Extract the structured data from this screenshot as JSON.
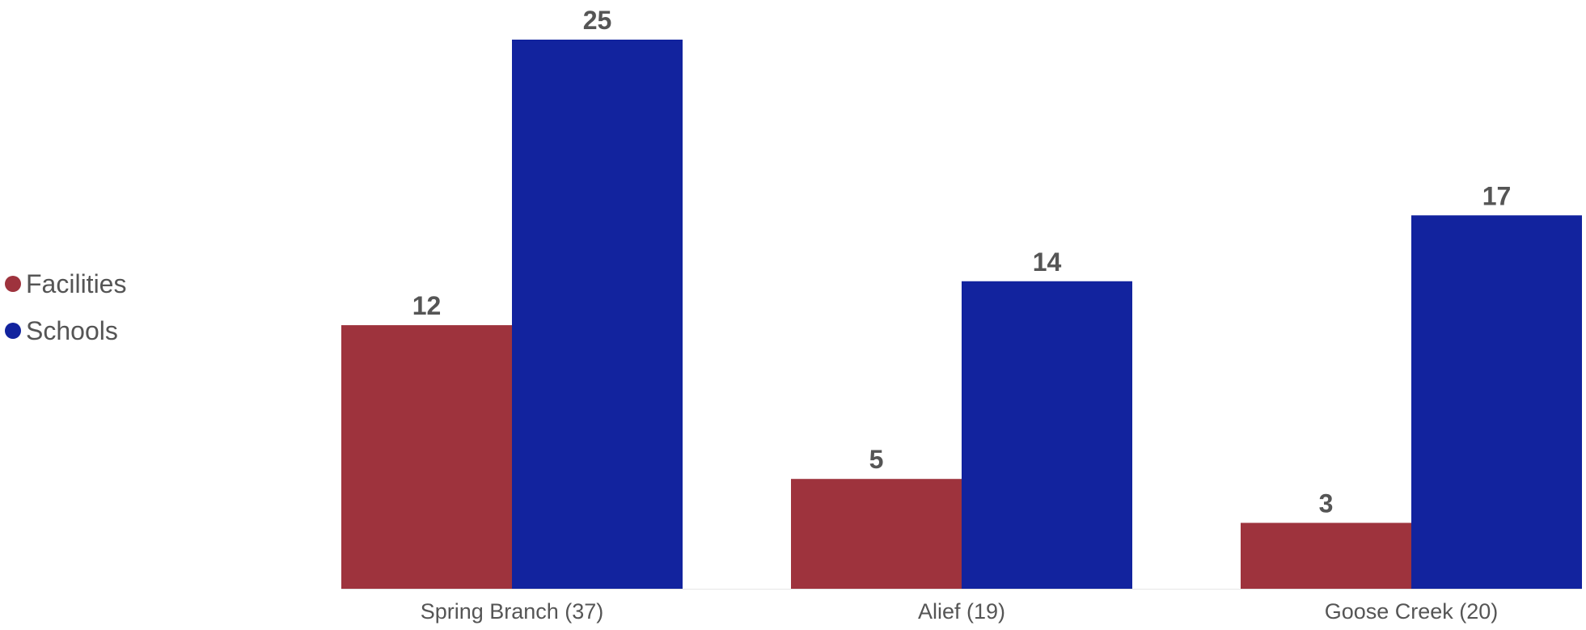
{
  "chart_data": {
    "type": "bar",
    "categories": [
      "Spring Branch (37)",
      "Alief (19)",
      "Goose Creek (20)"
    ],
    "series": [
      {
        "name": "Facilities",
        "color": "#9e333d",
        "values": [
          12,
          5,
          3
        ]
      },
      {
        "name": "Schools",
        "color": "#12239e",
        "values": [
          25,
          14,
          17
        ]
      }
    ],
    "legend_position": "left",
    "ylim": [
      0,
      25
    ],
    "grid": false,
    "data_labels": true
  }
}
